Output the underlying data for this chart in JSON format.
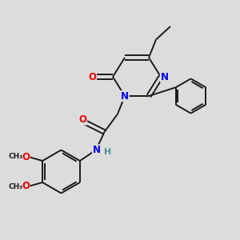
{
  "background_color": "#dcdcdc",
  "bond_color": "#1a1a1a",
  "atom_colors": {
    "N": "#0000ee",
    "O": "#ee0000",
    "H": "#4a9090",
    "C": "#1a1a1a"
  },
  "lw": 1.4,
  "fs": 8.5
}
